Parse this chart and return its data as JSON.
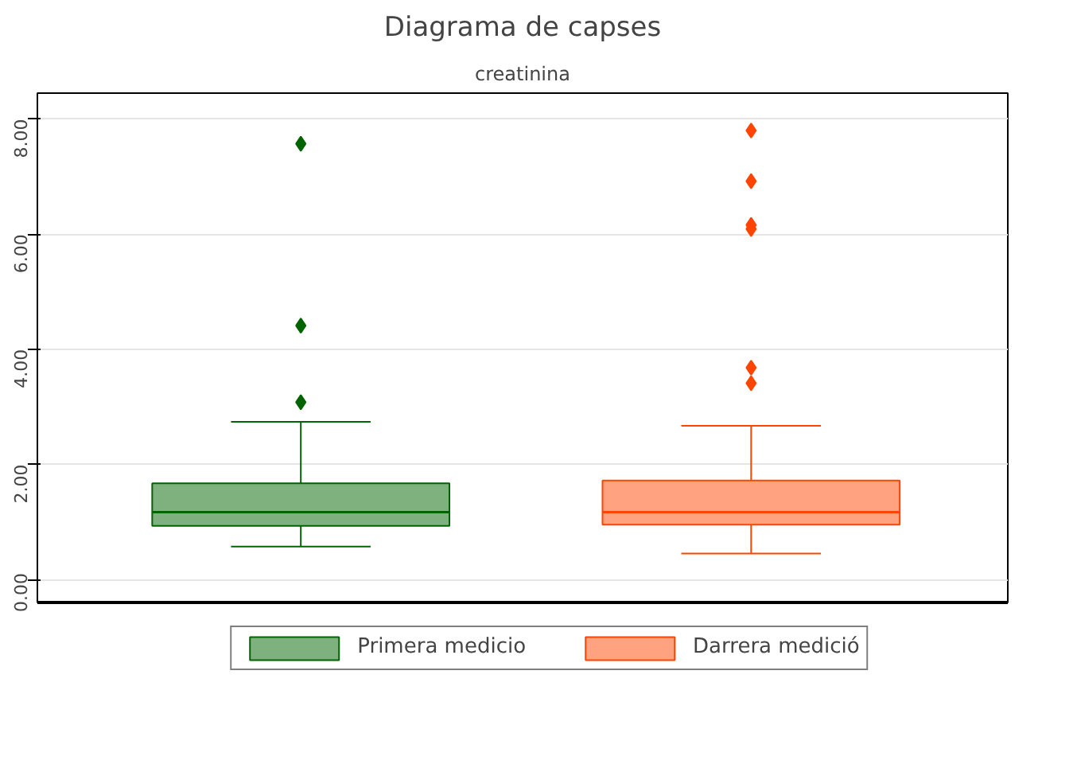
{
  "chart_data": {
    "type": "box",
    "title": "Diagrama de capses",
    "subtitle": "creatinina",
    "categories": [
      null,
      null
    ],
    "series": [
      {
        "name": "Primera medicio",
        "color": "#006400",
        "boxes": [
          {
            "low": 0.57,
            "q1": 0.93,
            "median": 1.17,
            "q3": 1.67,
            "high": 2.74,
            "outliers": [
              3.08,
              4.41,
              7.57
            ]
          },
          null
        ]
      },
      {
        "name": "Darrera medició",
        "color": "#ff4500",
        "boxes": [
          null,
          {
            "low": 0.45,
            "q1": 0.95,
            "median": 1.17,
            "q3": 1.72,
            "high": 2.67,
            "outliers": [
              3.41,
              3.68,
              6.09,
              6.16,
              6.92,
              7.8
            ]
          }
        ]
      }
    ],
    "ylim": [
      -0.4,
      8.45
    ],
    "yticks": [
      {
        "value": 0,
        "label": "0.00"
      },
      {
        "value": 2,
        "label": "2.00"
      },
      {
        "value": 4,
        "label": "4.00"
      },
      {
        "value": 6,
        "label": "6.00"
      },
      {
        "value": 8,
        "label": "8.00"
      }
    ],
    "grid": "y",
    "legend": "bottom",
    "marker": "diamond"
  }
}
